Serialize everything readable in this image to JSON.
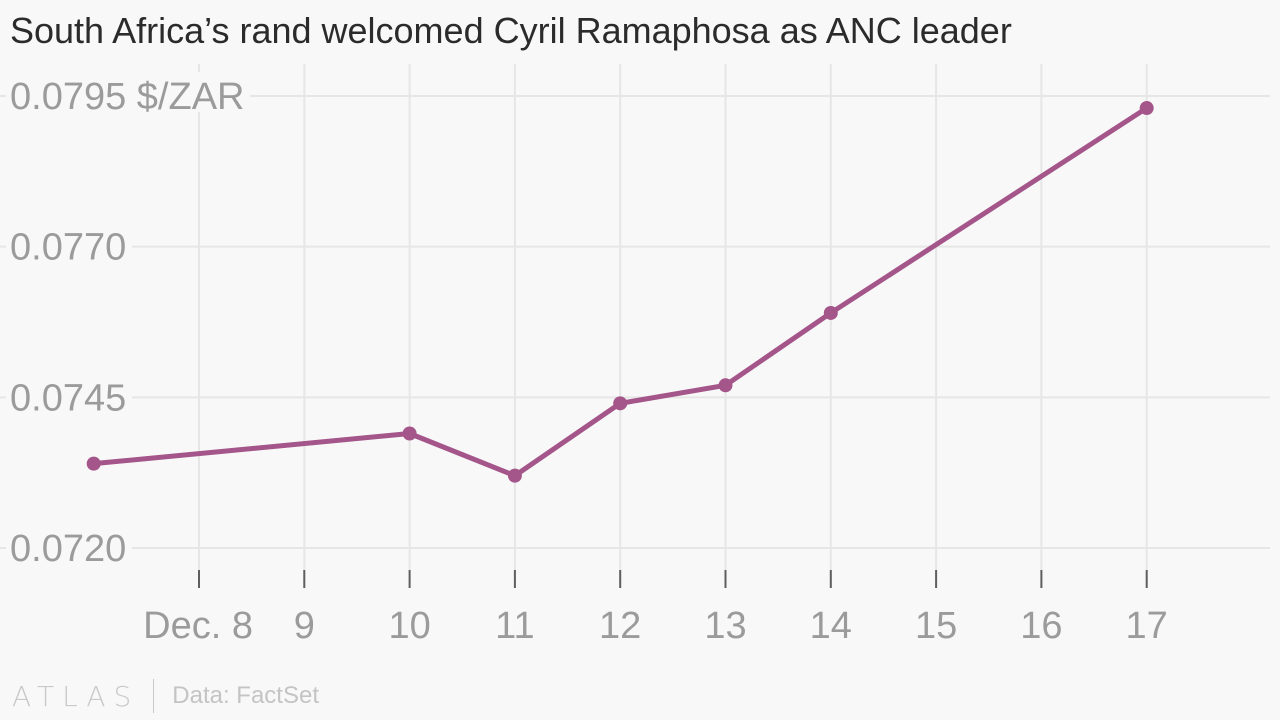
{
  "title": "South Africa’s rand welcomed Cyril Ramaphosa as ANC leader",
  "footer": {
    "logo": "ATLAS",
    "source": "Data: FactSet"
  },
  "colors": {
    "line": "#a4558a",
    "grid": "#e6e6e6",
    "axis_text": "#9b9b9b",
    "title": "#2b2b2b",
    "background": "#f8f8f8"
  },
  "chart_data": {
    "type": "line",
    "title": "South Africa’s rand welcomed Cyril Ramaphosa as ANC leader",
    "xlabel": "",
    "ylabel": "$/ZAR",
    "x_tick_labels": [
      "Dec. 8",
      "9",
      "10",
      "11",
      "12",
      "13",
      "14",
      "15",
      "16",
      "17"
    ],
    "y_tick_labels": [
      "0.0720",
      "0.0745",
      "0.0770",
      "0.0795"
    ],
    "y_unit_label": "$/ZAR",
    "ylim": [
      0.072,
      0.0795
    ],
    "grid": true,
    "series": [
      {
        "x": [
          "Dec. 7",
          "Dec. 10",
          "Dec. 11",
          "Dec. 12",
          "Dec. 13",
          "Dec. 14",
          "Dec. 17"
        ],
        "values": [
          0.0734,
          0.0739,
          0.0732,
          0.0744,
          0.0747,
          0.0759,
          0.0793
        ]
      }
    ]
  }
}
